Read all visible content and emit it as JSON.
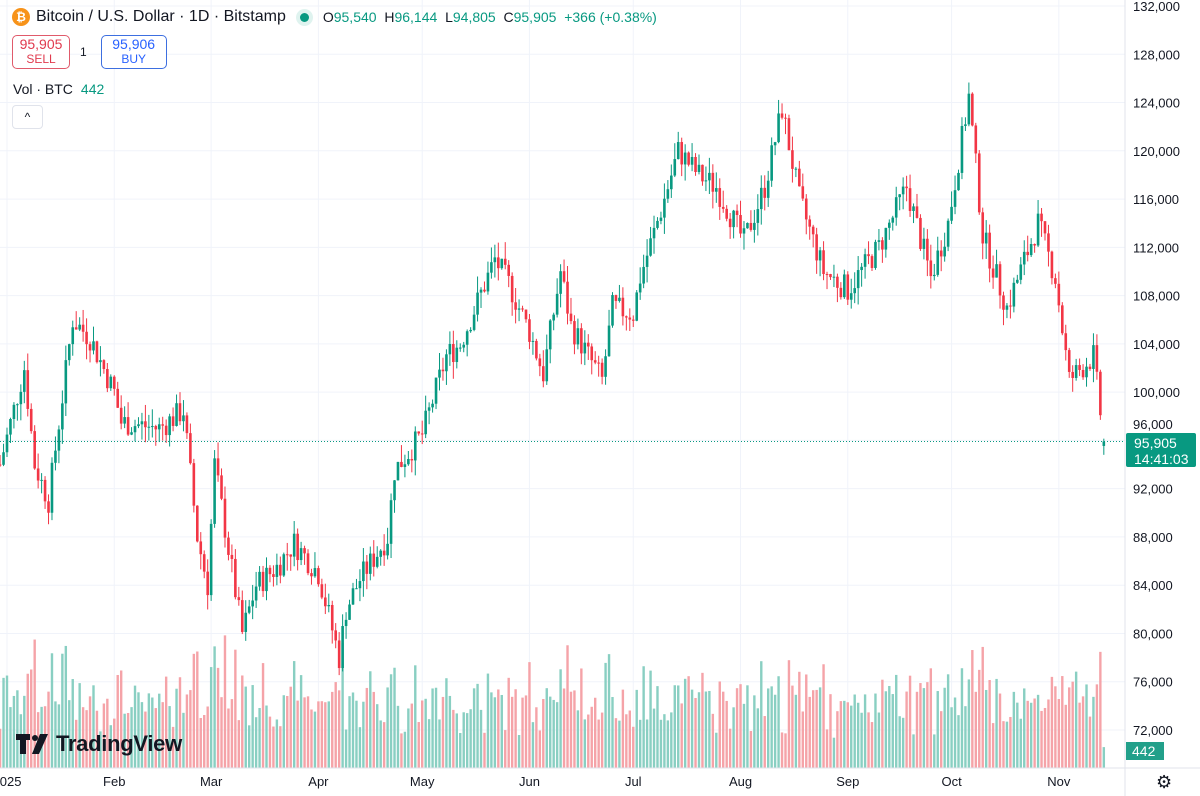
{
  "header": {
    "symbol_title": "Bitcoin / U.S. Dollar · 1D · Bitstamp",
    "open_label": "O",
    "open": "95,540",
    "high_label": "H",
    "high": "96,144",
    "low_label": "L",
    "low": "94,805",
    "close_label": "C",
    "close": "95,905",
    "change": "+366 (+0.38%)"
  },
  "trade": {
    "sell_price": "95,905",
    "sell_label": "SELL",
    "spread": "1",
    "buy_price": "95,906",
    "buy_label": "BUY"
  },
  "volume_legend": {
    "label": "Vol · BTC",
    "value": "442"
  },
  "icons": {
    "coin": "bitcoin-icon",
    "collapse": "chevron-up-icon",
    "settings": "gear-icon"
  },
  "collapse_glyph": "^",
  "branding": {
    "logo_text": "TradingView"
  },
  "price_tag": {
    "price": "95,905",
    "countdown": "14:41:03"
  },
  "volume_tag": "442",
  "colors": {
    "up": "#089981",
    "down": "#f23645",
    "up_volume": "#89cfc2",
    "down_volume": "#f5a3a8",
    "grid": "#f0f3fa"
  },
  "chart_data": {
    "type": "candlestick",
    "timeframe": "1D",
    "ylim": [
      70000,
      132000
    ],
    "y_ticks": [
      "132,000",
      "128,000",
      "124,000",
      "120,000",
      "116,000",
      "112,000",
      "108,000",
      "104,000",
      "100,000",
      "96,000",
      "92,000",
      "88,000",
      "84,000",
      "80,000",
      "76,000",
      "72,000"
    ],
    "y_tick_values": [
      132000,
      128000,
      124000,
      120000,
      116000,
      112000,
      108000,
      104000,
      100000,
      96000,
      92000,
      88000,
      84000,
      80000,
      76000,
      72000
    ],
    "x_ticks": [
      {
        "label": "2025",
        "date": "2025-01-01"
      },
      {
        "label": "Feb",
        "date": "2025-02-01"
      },
      {
        "label": "Mar",
        "date": "2025-03-01"
      },
      {
        "label": "Apr",
        "date": "2025-04-01"
      },
      {
        "label": "May",
        "date": "2025-05-01"
      },
      {
        "label": "Jun",
        "date": "2025-06-01"
      },
      {
        "label": "Jul",
        "date": "2025-07-01"
      },
      {
        "label": "Aug",
        "date": "2025-08-01"
      },
      {
        "label": "Sep",
        "date": "2025-09-01"
      },
      {
        "label": "Oct",
        "date": "2025-10-01"
      },
      {
        "label": "Nov",
        "date": "2025-11-01"
      }
    ],
    "grid": true,
    "current_price": 95905,
    "last_candle": {
      "date": "2025-11-14",
      "open": 95540,
      "high": 96144,
      "low": 94805,
      "close": 95905,
      "volume": 442
    },
    "approx_close_path": [
      [
        "2024-12-30",
        94000
      ],
      [
        "2025-01-06",
        102000
      ],
      [
        "2025-01-09",
        94000
      ],
      [
        "2025-01-13",
        91000
      ],
      [
        "2025-01-20",
        106000
      ],
      [
        "2025-01-25",
        104500
      ],
      [
        "2025-02-01",
        100000
      ],
      [
        "2025-02-03",
        97500
      ],
      [
        "2025-02-14",
        97000
      ],
      [
        "2025-02-21",
        98500
      ],
      [
        "2025-02-25",
        88000
      ],
      [
        "2025-02-28",
        84000
      ],
      [
        "2025-03-02",
        94000
      ],
      [
        "2025-03-10",
        80000
      ],
      [
        "2025-03-14",
        84000
      ],
      [
        "2025-03-20",
        85500
      ],
      [
        "2025-03-25",
        87500
      ],
      [
        "2025-04-01",
        85000
      ],
      [
        "2025-04-07",
        78000
      ],
      [
        "2025-04-09",
        82000
      ],
      [
        "2025-04-13",
        84500
      ],
      [
        "2025-04-21",
        88000
      ],
      [
        "2025-04-23",
        93500
      ],
      [
        "2025-05-01",
        96500
      ],
      [
        "2025-05-08",
        103000
      ],
      [
        "2025-05-12",
        104000
      ],
      [
        "2025-05-22",
        111000
      ],
      [
        "2025-05-26",
        109000
      ],
      [
        "2025-06-01",
        105000
      ],
      [
        "2025-06-05",
        101500
      ],
      [
        "2025-06-10",
        110000
      ],
      [
        "2025-06-13",
        105500
      ],
      [
        "2025-06-22",
        101000
      ],
      [
        "2025-06-25",
        107000
      ],
      [
        "2025-07-01",
        106500
      ],
      [
        "2025-07-03",
        109500
      ],
      [
        "2025-07-10",
        116000
      ],
      [
        "2025-07-14",
        120000
      ],
      [
        "2025-07-20",
        118000
      ],
      [
        "2025-07-25",
        117000
      ],
      [
        "2025-08-02",
        112500
      ],
      [
        "2025-08-08",
        117000
      ],
      [
        "2025-08-13",
        123500
      ],
      [
        "2025-08-18",
        116000
      ],
      [
        "2025-08-25",
        110000
      ],
      [
        "2025-09-01",
        108500
      ],
      [
        "2025-09-10",
        112000
      ],
      [
        "2025-09-18",
        117000
      ],
      [
        "2025-09-25",
        109500
      ],
      [
        "2025-09-30",
        114000
      ],
      [
        "2025-10-06",
        124500
      ],
      [
        "2025-10-10",
        113000
      ],
      [
        "2025-10-17",
        107000
      ],
      [
        "2025-10-26",
        114000
      ],
      [
        "2025-10-31",
        109500
      ],
      [
        "2025-11-04",
        101000
      ],
      [
        "2025-11-11",
        103000
      ],
      [
        "2025-11-14",
        95905
      ]
    ]
  }
}
